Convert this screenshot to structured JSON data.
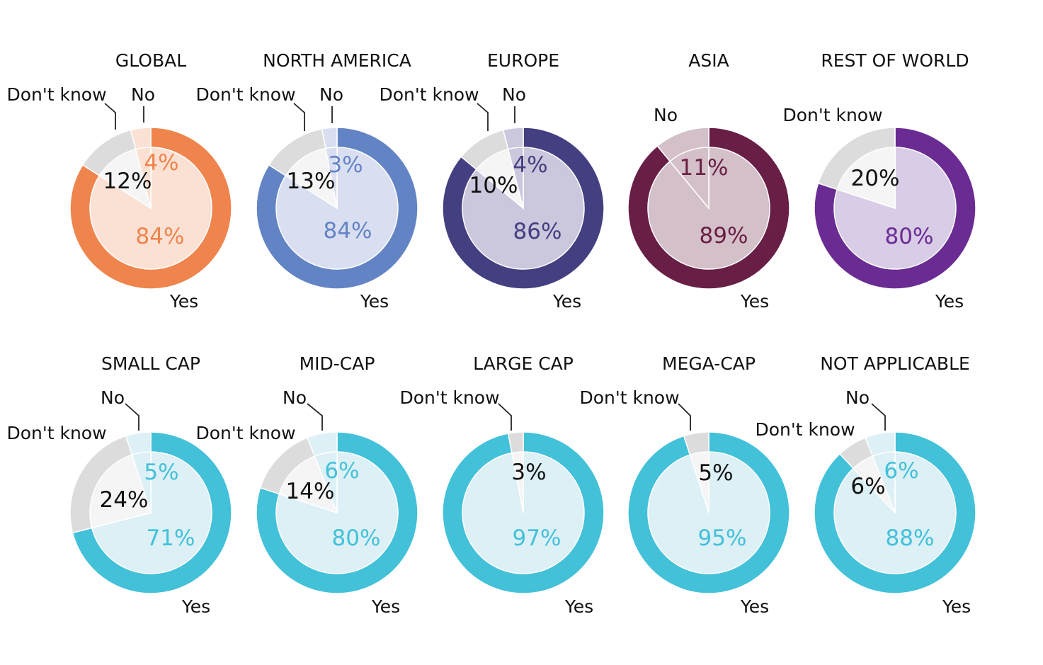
{
  "chart_data": [
    {
      "type": "pie",
      "title": "GLOBAL",
      "categories": [
        "Yes",
        "Don't know",
        "No"
      ],
      "values": [
        84,
        12,
        4
      ],
      "labels": [
        "84%",
        "12%",
        "4%"
      ],
      "colors": {
        "main": "#ef844c",
        "light": "#fbe1d3",
        "dk": "#dcdcdc",
        "dk_inner": "#f5f5f5"
      }
    },
    {
      "type": "pie",
      "title": "NORTH AMERICA",
      "categories": [
        "Yes",
        "Don't know",
        "No"
      ],
      "values": [
        84,
        13,
        3
      ],
      "labels": [
        "84%",
        "13%",
        "3%"
      ],
      "colors": {
        "main": "#6384c4",
        "light": "#d9dff1",
        "dk": "#dcdcdc",
        "dk_inner": "#f5f5f5"
      }
    },
    {
      "type": "pie",
      "title": "EUROPE",
      "categories": [
        "Yes",
        "Don't know",
        "No"
      ],
      "values": [
        86,
        10,
        4
      ],
      "labels": [
        "86%",
        "10%",
        "4%"
      ],
      "colors": {
        "main": "#433f80",
        "light": "#cbc7dd",
        "dk": "#dcdcdc",
        "dk_inner": "#f5f5f5"
      }
    },
    {
      "type": "pie",
      "title": "ASIA",
      "categories": [
        "Yes",
        "No"
      ],
      "values": [
        89,
        11
      ],
      "labels": [
        "89%",
        "11%"
      ],
      "colors": {
        "main": "#681e45",
        "light": "#d4c0c8",
        "dk": "#dcdcdc",
        "dk_inner": "#f5f5f5"
      }
    },
    {
      "type": "pie",
      "title": "REST OF WORLD",
      "categories": [
        "Yes",
        "Don't know"
      ],
      "values": [
        80,
        20
      ],
      "labels": [
        "80%",
        "20%"
      ],
      "colors": {
        "main": "#6a2b93",
        "light": "#d8cce6",
        "dk": "#dcdcdc",
        "dk_inner": "#f5f5f5"
      }
    },
    {
      "type": "pie",
      "title": "SMALL CAP",
      "categories": [
        "Yes",
        "Don't know",
        "No"
      ],
      "values": [
        71,
        24,
        5
      ],
      "labels": [
        "71%",
        "24%",
        "5%"
      ],
      "colors": {
        "main": "#42c1d9",
        "light": "#dcf0f6",
        "dk": "#dcdcdc",
        "dk_inner": "#f5f5f5"
      }
    },
    {
      "type": "pie",
      "title": "MID-CAP",
      "categories": [
        "Yes",
        "Don't know",
        "No"
      ],
      "values": [
        80,
        14,
        6
      ],
      "labels": [
        "80%",
        "14%",
        "6%"
      ],
      "colors": {
        "main": "#42c1d9",
        "light": "#dcf0f6",
        "dk": "#dcdcdc",
        "dk_inner": "#f5f5f5"
      }
    },
    {
      "type": "pie",
      "title": "LARGE CAP",
      "categories": [
        "Yes",
        "Don't know"
      ],
      "values": [
        97,
        3
      ],
      "labels": [
        "97%",
        "3%"
      ],
      "colors": {
        "main": "#42c1d9",
        "light": "#dcf0f6",
        "dk": "#dcdcdc",
        "dk_inner": "#f5f5f5"
      }
    },
    {
      "type": "pie",
      "title": "MEGA-CAP",
      "categories": [
        "Yes",
        "Don't know"
      ],
      "values": [
        95,
        5
      ],
      "labels": [
        "95%",
        "5%"
      ],
      "colors": {
        "main": "#42c1d9",
        "light": "#dcf0f6",
        "dk": "#dcdcdc",
        "dk_inner": "#f5f5f5"
      }
    },
    {
      "type": "pie",
      "title": "NOT APPLICABLE",
      "categories": [
        "Yes",
        "Don't know",
        "No"
      ],
      "values": [
        88,
        6,
        6
      ],
      "labels": [
        "88%",
        "6%",
        "6%"
      ],
      "colors": {
        "main": "#42c1d9",
        "light": "#dcf0f6",
        "dk": "#dcdcdc",
        "dk_inner": "#f5f5f5"
      }
    }
  ]
}
